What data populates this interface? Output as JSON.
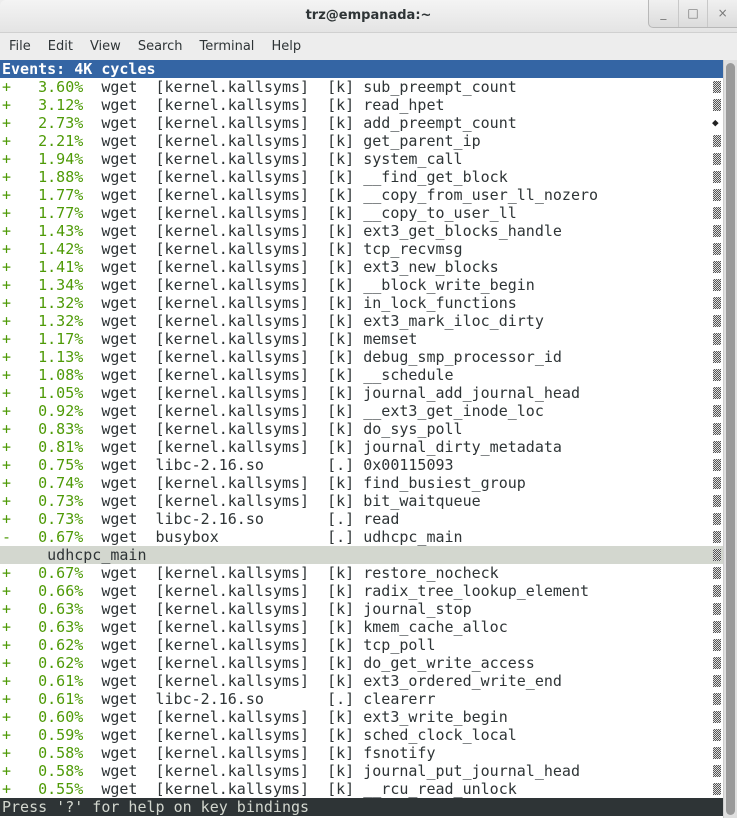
{
  "window": {
    "title": "trz@empanada:~",
    "buttons": [
      "_",
      "□",
      "×"
    ]
  },
  "menu": [
    "File",
    "Edit",
    "View",
    "Search",
    "Terminal",
    "Help"
  ],
  "header": "Events: 4K cycles",
  "rows": [
    [
      "+",
      "3.60%",
      "wget",
      "[kernel.kallsyms]",
      "[k]",
      "sub_preempt_count",
      "pattern"
    ],
    [
      "+",
      "3.12%",
      "wget",
      "[kernel.kallsyms]",
      "[k]",
      "read_hpet",
      "pattern"
    ],
    [
      "+",
      "2.73%",
      "wget",
      "[kernel.kallsyms]",
      "[k]",
      "add_preempt_count",
      "diamond"
    ],
    [
      "+",
      "2.21%",
      "wget",
      "[kernel.kallsyms]",
      "[k]",
      "get_parent_ip",
      "pattern"
    ],
    [
      "+",
      "1.94%",
      "wget",
      "[kernel.kallsyms]",
      "[k]",
      "system_call",
      "pattern"
    ],
    [
      "+",
      "1.88%",
      "wget",
      "[kernel.kallsyms]",
      "[k]",
      "__find_get_block",
      "pattern"
    ],
    [
      "+",
      "1.77%",
      "wget",
      "[kernel.kallsyms]",
      "[k]",
      "__copy_from_user_ll_nozero",
      "pattern"
    ],
    [
      "+",
      "1.77%",
      "wget",
      "[kernel.kallsyms]",
      "[k]",
      "__copy_to_user_ll",
      "pattern"
    ],
    [
      "+",
      "1.43%",
      "wget",
      "[kernel.kallsyms]",
      "[k]",
      "ext3_get_blocks_handle",
      "pattern"
    ],
    [
      "+",
      "1.42%",
      "wget",
      "[kernel.kallsyms]",
      "[k]",
      "tcp_recvmsg",
      "pattern"
    ],
    [
      "+",
      "1.41%",
      "wget",
      "[kernel.kallsyms]",
      "[k]",
      "ext3_new_blocks",
      "pattern"
    ],
    [
      "+",
      "1.34%",
      "wget",
      "[kernel.kallsyms]",
      "[k]",
      "__block_write_begin",
      "pattern"
    ],
    [
      "+",
      "1.32%",
      "wget",
      "[kernel.kallsyms]",
      "[k]",
      "in_lock_functions",
      "pattern"
    ],
    [
      "+",
      "1.32%",
      "wget",
      "[kernel.kallsyms]",
      "[k]",
      "ext3_mark_iloc_dirty",
      "pattern"
    ],
    [
      "+",
      "1.17%",
      "wget",
      "[kernel.kallsyms]",
      "[k]",
      "memset",
      "pattern"
    ],
    [
      "+",
      "1.13%",
      "wget",
      "[kernel.kallsyms]",
      "[k]",
      "debug_smp_processor_id",
      "pattern"
    ],
    [
      "+",
      "1.08%",
      "wget",
      "[kernel.kallsyms]",
      "[k]",
      "__schedule",
      "pattern"
    ],
    [
      "+",
      "1.05%",
      "wget",
      "[kernel.kallsyms]",
      "[k]",
      "journal_add_journal_head",
      "pattern"
    ],
    [
      "+",
      "0.92%",
      "wget",
      "[kernel.kallsyms]",
      "[k]",
      "__ext3_get_inode_loc",
      "pattern"
    ],
    [
      "+",
      "0.83%",
      "wget",
      "[kernel.kallsyms]",
      "[k]",
      "do_sys_poll",
      "pattern"
    ],
    [
      "+",
      "0.81%",
      "wget",
      "[kernel.kallsyms]",
      "[k]",
      "journal_dirty_metadata",
      "pattern"
    ],
    [
      "+",
      "0.75%",
      "wget",
      "libc-2.16.so",
      "[.]",
      "0x00115093",
      "pattern"
    ],
    [
      "+",
      "0.74%",
      "wget",
      "[kernel.kallsyms]",
      "[k]",
      "find_busiest_group",
      "pattern"
    ],
    [
      "+",
      "0.73%",
      "wget",
      "[kernel.kallsyms]",
      "[k]",
      "bit_waitqueue",
      "pattern"
    ],
    [
      "+",
      "0.73%",
      "wget",
      "libc-2.16.so",
      "[.]",
      "read",
      "pattern"
    ],
    [
      "-",
      "0.67%",
      "wget",
      "busybox",
      "[.]",
      "udhcpc_main",
      "pattern"
    ],
    [
      "SUB",
      "udhcpc_main"
    ],
    [
      "+",
      "0.67%",
      "wget",
      "[kernel.kallsyms]",
      "[k]",
      "restore_nocheck",
      "pattern"
    ],
    [
      "+",
      "0.66%",
      "wget",
      "[kernel.kallsyms]",
      "[k]",
      "radix_tree_lookup_element",
      "pattern"
    ],
    [
      "+",
      "0.63%",
      "wget",
      "[kernel.kallsyms]",
      "[k]",
      "journal_stop",
      "pattern"
    ],
    [
      "+",
      "0.63%",
      "wget",
      "[kernel.kallsyms]",
      "[k]",
      "kmem_cache_alloc",
      "pattern"
    ],
    [
      "+",
      "0.62%",
      "wget",
      "[kernel.kallsyms]",
      "[k]",
      "tcp_poll",
      "pattern"
    ],
    [
      "+",
      "0.62%",
      "wget",
      "[kernel.kallsyms]",
      "[k]",
      "do_get_write_access",
      "pattern"
    ],
    [
      "+",
      "0.61%",
      "wget",
      "[kernel.kallsyms]",
      "[k]",
      "ext3_ordered_write_end",
      "pattern"
    ],
    [
      "+",
      "0.61%",
      "wget",
      "libc-2.16.so",
      "[.]",
      "clearerr",
      "pattern"
    ],
    [
      "+",
      "0.60%",
      "wget",
      "[kernel.kallsyms]",
      "[k]",
      "ext3_write_begin",
      "pattern"
    ],
    [
      "+",
      "0.59%",
      "wget",
      "[kernel.kallsyms]",
      "[k]",
      "sched_clock_local",
      "pattern"
    ],
    [
      "+",
      "0.58%",
      "wget",
      "[kernel.kallsyms]",
      "[k]",
      "fsnotify",
      "pattern"
    ],
    [
      "+",
      "0.58%",
      "wget",
      "[kernel.kallsyms]",
      "[k]",
      "journal_put_journal_head",
      "pattern"
    ],
    [
      "+",
      "0.55%",
      "wget",
      "[kernel.kallsyms]",
      "[k]",
      "__rcu_read_unlock",
      "pattern"
    ]
  ],
  "status": "Press '?' for help on key bindings",
  "colors": {
    "header_bg": "#3465a4",
    "green": "#4e9a06",
    "selected_bg": "#d3d7cf",
    "status_bg": "#2e3436"
  }
}
